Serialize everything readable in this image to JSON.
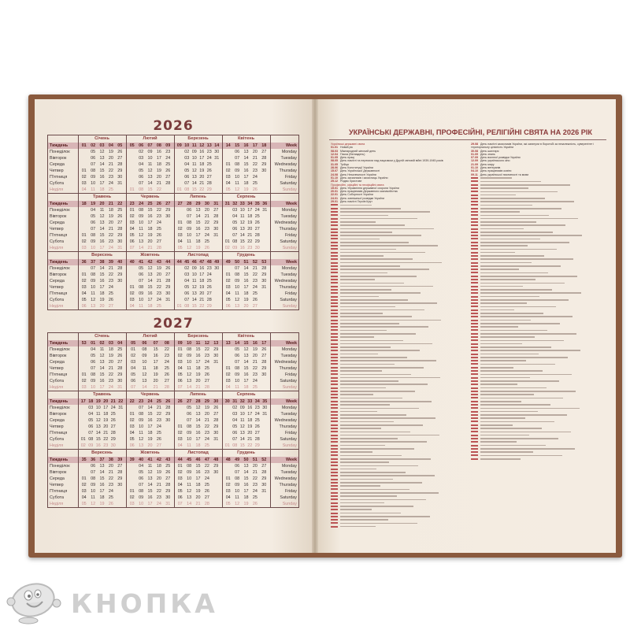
{
  "labels_ua": [
    "Тиждень",
    "Понеділок",
    "Вівторок",
    "Середа",
    "Четвер",
    "П'ятниця",
    "Субота",
    "Неділя"
  ],
  "labels_en": [
    "Week",
    "Monday",
    "Tuesday",
    "Wednesday",
    "Thursday",
    "Friday",
    "Saturday",
    "Sunday"
  ],
  "colors": {
    "cover": "#8a5a3e",
    "page": "#f3ebe0",
    "accent": "#8b3a3a",
    "week_row": "#d8b5b6",
    "sunday": "#c48b8b"
  },
  "years": [
    {
      "year": "2026",
      "months": [
        {
          "name": "Січень",
          "weeks": [
            "01",
            "02",
            "03",
            "04",
            "05"
          ],
          "rows": [
            "05 12 19 26",
            "06 13 20 27",
            "07 14 21 28",
            "01 08 15 22 29",
            "02 09 16 23 30",
            "03 10 17 24 31",
            "04 11 18 25"
          ]
        },
        {
          "name": "Лютий",
          "weeks": [
            "05",
            "06",
            "07",
            "08",
            "09"
          ],
          "rows": [
            "02 09 16 23",
            "03 10 17 24",
            "04 11 18 25",
            "05 12 19 26",
            "06 13 20 27",
            "07 14 21 28",
            "01 08 15 22"
          ]
        },
        {
          "name": "Березень",
          "weeks": [
            "09",
            "10",
            "11",
            "12",
            "13",
            "14"
          ],
          "rows": [
            "02 09 16 23 30",
            "03 10 17 24 31",
            "04 11 18 25",
            "05 12 19 26",
            "06 13 20 27",
            "07 14 21 28",
            "01 08 15 22 29"
          ]
        },
        {
          "name": "Квітень",
          "weeks": [
            "14",
            "15",
            "16",
            "17",
            "18"
          ],
          "rows": [
            "06 13 20 27",
            "07 14 21 28",
            "01 08 15 22 29",
            "02 09 16 23 30",
            "03 10 17 24",
            "04 11 18 25",
            "05 12 19 26"
          ]
        },
        {
          "name": "Травень",
          "weeks": [
            "18",
            "19",
            "20",
            "21",
            "22"
          ],
          "rows": [
            "04 11 18 25",
            "05 12 19 26",
            "06 13 20 27",
            "07 14 21 28",
            "01 08 15 22 29",
            "02 09 16 23 30",
            "03 10 17 24 31"
          ]
        },
        {
          "name": "Червень",
          "weeks": [
            "23",
            "24",
            "25",
            "26",
            "27"
          ],
          "rows": [
            "01 08 15 22 29",
            "02 09 16 23 30",
            "03 10 17 24",
            "04 11 18 25",
            "05 12 19 26",
            "06 13 20 27",
            "07 14 21 28"
          ]
        },
        {
          "name": "Липень",
          "weeks": [
            "27",
            "28",
            "29",
            "30",
            "31"
          ],
          "rows": [
            "06 13 20 27",
            "07 14 21 28",
            "01 08 15 22 29",
            "02 09 16 23 30",
            "03 10 17 24 31",
            "04 11 18 25",
            "05 12 19 26"
          ]
        },
        {
          "name": "Серпень",
          "weeks": [
            "31",
            "32",
            "33",
            "34",
            "35",
            "36"
          ],
          "rows": [
            "03 10 17 24 31",
            "04 11 18 25",
            "05 12 19 26",
            "06 13 20 27",
            "07 14 21 28",
            "01 08 15 22 29",
            "02 09 16 23 30"
          ]
        },
        {
          "name": "Вересень",
          "weeks": [
            "36",
            "37",
            "38",
            "39",
            "40"
          ],
          "rows": [
            "07 14 21 28",
            "01 08 15 22 29",
            "02 09 16 23 30",
            "03 10 17 24",
            "04 11 18 25",
            "05 12 19 26",
            "06 13 20 27"
          ]
        },
        {
          "name": "Жовтень",
          "weeks": [
            "40",
            "41",
            "42",
            "43",
            "44"
          ],
          "rows": [
            "05 12 19 26",
            "06 13 20 27",
            "07 14 21 28",
            "01 08 15 22 29",
            "02 09 16 23 30",
            "03 10 17 24 31",
            "04 11 18 25"
          ]
        },
        {
          "name": "Листопад",
          "weeks": [
            "44",
            "45",
            "46",
            "47",
            "48",
            "49"
          ],
          "rows": [
            "02 09 16 23 30",
            "03 10 17 24",
            "04 11 18 25",
            "05 12 19 26",
            "06 13 20 27",
            "07 14 21 28",
            "01 08 15 22 29"
          ]
        },
        {
          "name": "Грудень",
          "weeks": [
            "49",
            "50",
            "51",
            "52",
            "53"
          ],
          "rows": [
            "07 14 21 28",
            "01 08 15 22 29",
            "02 09 16 23 30",
            "03 10 17 24 31",
            "04 11 18 25",
            "05 12 19 26",
            "06 13 20 27"
          ]
        }
      ]
    },
    {
      "year": "2027",
      "months": [
        {
          "name": "Січень",
          "weeks": [
            "53",
            "01",
            "02",
            "03",
            "04"
          ],
          "rows": [
            "04 11 18 25",
            "05 12 19 26",
            "06 13 20 27",
            "07 14 21 28",
            "01 08 15 22 29",
            "02 09 16 23 30",
            "03 10 17 24 31"
          ]
        },
        {
          "name": "Лютий",
          "weeks": [
            "05",
            "06",
            "07",
            "08"
          ],
          "rows": [
            "01 08 15 22",
            "02 09 16 23",
            "03 10 17 24",
            "04 11 18 25",
            "05 12 19 26",
            "06 13 20 27",
            "07 14 21 28"
          ]
        },
        {
          "name": "Березень",
          "weeks": [
            "09",
            "10",
            "11",
            "12",
            "13"
          ],
          "rows": [
            "01 08 15 22 29",
            "02 09 16 23 30",
            "03 10 17 24 31",
            "04 11 18 25",
            "05 12 19 26",
            "06 13 20 27",
            "07 14 21 28"
          ]
        },
        {
          "name": "Квітень",
          "weeks": [
            "13",
            "14",
            "15",
            "16",
            "17"
          ],
          "rows": [
            "05 12 19 26",
            "06 13 20 27",
            "07 14 21 28",
            "01 08 15 22 29",
            "02 09 16 23 30",
            "03 10 17 24",
            "04 11 18 25"
          ]
        },
        {
          "name": "Травень",
          "weeks": [
            "17",
            "18",
            "19",
            "20",
            "21",
            "22"
          ],
          "rows": [
            "03 10 17 24 31",
            "04 11 18 25",
            "05 12 19 26",
            "06 13 20 27",
            "07 14 21 28",
            "01 08 15 22 29",
            "02 09 16 23 30"
          ]
        },
        {
          "name": "Червень",
          "weeks": [
            "22",
            "23",
            "24",
            "25",
            "26"
          ],
          "rows": [
            "07 14 21 28",
            "01 08 15 22 29",
            "02 09 16 23 30",
            "03 10 17 24",
            "04 11 18 25",
            "05 12 19 26",
            "06 13 20 27"
          ]
        },
        {
          "name": "Липень",
          "weeks": [
            "26",
            "27",
            "28",
            "29",
            "30"
          ],
          "rows": [
            "05 12 19 26",
            "06 13 20 27",
            "07 14 21 28",
            "01 08 15 22 29",
            "02 09 16 23 30",
            "03 10 17 24 31",
            "04 11 18 25"
          ]
        },
        {
          "name": "Серпень",
          "weeks": [
            "30",
            "31",
            "32",
            "33",
            "34",
            "35"
          ],
          "rows": [
            "02 09 16 23 30",
            "03 10 17 24 31",
            "04 11 18 25",
            "05 12 19 26",
            "06 13 20 27",
            "07 14 21 28",
            "01 08 15 22 29"
          ]
        },
        {
          "name": "Вересень",
          "weeks": [
            "35",
            "36",
            "37",
            "38",
            "39"
          ],
          "rows": [
            "06 13 20 27",
            "07 14 21 28",
            "01 08 15 22 29",
            "02 09 16 23 30",
            "03 10 17 24",
            "04 11 18 25",
            "05 12 19 26"
          ]
        },
        {
          "name": "Жовтень",
          "weeks": [
            "39",
            "40",
            "41",
            "42",
            "43"
          ],
          "rows": [
            "04 11 18 25",
            "05 12 19 26",
            "06 13 20 27",
            "07 14 21 28",
            "01 08 15 22 29",
            "02 09 16 23 30",
            "03 10 17 24 31"
          ]
        },
        {
          "name": "Листопад",
          "weeks": [
            "44",
            "45",
            "46",
            "47",
            "48"
          ],
          "rows": [
            "01 08 15 22 29",
            "02 09 16 23 30",
            "03 10 17 24",
            "04 11 18 25",
            "05 12 19 26",
            "06 13 20 27",
            "07 14 21 28"
          ]
        },
        {
          "name": "Грудень",
          "weeks": [
            "48",
            "49",
            "50",
            "51",
            "52"
          ],
          "rows": [
            "06 13 20 27",
            "07 14 21 28",
            "01 08 15 22 29",
            "02 09 16 23 30",
            "03 10 17 24 31",
            "04 11 18 25",
            "05 12 19 26"
          ]
        }
      ]
    }
  ],
  "holidays": {
    "title": "УКРАЇНСЬКІ ДЕРЖАВНІ, ПРОФЕСІЙНІ, РЕЛІГІЙНІ СВЯТА НА 2026 РІК",
    "left": [
      {
        "section": "Українські державні свята"
      },
      {
        "d": "01.01",
        "t": "Новий рік"
      },
      {
        "d": "08.03",
        "t": "Міжнародний жіночий день"
      },
      {
        "d": "12.04",
        "t": "Пасха (Великдень)"
      },
      {
        "d": "01.05",
        "t": "День праці"
      },
      {
        "d": "08.05",
        "t": "День пам'яті та перемоги над нацизмом у Другій світовій війні 1939-1945 років"
      },
      {
        "d": "31.05",
        "t": "Трійця"
      },
      {
        "d": "28.06",
        "t": "День Конституції України"
      },
      {
        "d": "15.07",
        "t": "День Української Державності"
      },
      {
        "d": "24.08",
        "t": "День Незалежності України"
      },
      {
        "d": "01.10",
        "t": "День захисників і захисниць України"
      },
      {
        "d": "25.12",
        "t": "Різдво Христове"
      },
      {
        "section": "Професійні, офіційні та неофіційні свята"
      },
      {
        "d": "15.01",
        "t": "День Управління державної охорони України"
      },
      {
        "d": "20.01",
        "t": "День працівників Державного казначейства"
      },
      {
        "d": "22.01",
        "t": "День Соборності України"
      },
      {
        "d": "24.01",
        "t": "День зовнішньої розвідки України"
      },
      {
        "d": "29.01",
        "t": "День пам'яті Героїв Крут"
      }
    ],
    "right": [
      {
        "d": "29.08",
        "t": "День пам'яті захисників України, які загинули в боротьбі за незалежність, суверенітет і територіальну цілісність України"
      },
      {
        "d": "30.08",
        "t": "День шахтаря"
      },
      {
        "d": "01.09",
        "t": "День знань"
      },
      {
        "d": "07.09",
        "t": "День воєнної розвідки України"
      },
      {
        "d": "12.09",
        "t": "День українського кіно"
      },
      {
        "d": "21.09",
        "t": "День миру"
      },
      {
        "d": "01.10",
        "t": "День ветеранів"
      },
      {
        "d": "04.10",
        "t": "День працівників освіти"
      },
      {
        "d": "09.11",
        "t": "День української писемності та мови"
      }
    ]
  },
  "brand": {
    "name": "КНОПКА",
    "mascot_icon": "button-mascot-icon"
  }
}
